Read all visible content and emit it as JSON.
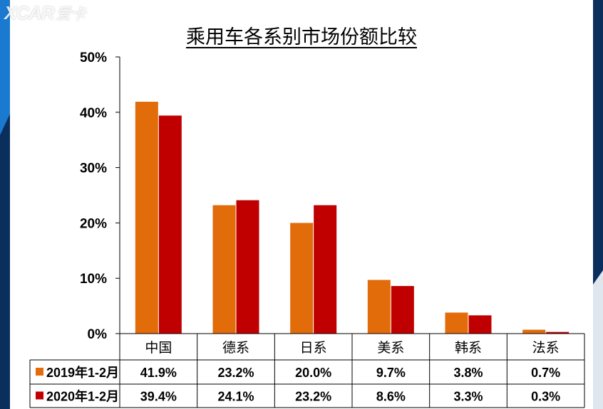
{
  "watermark": {
    "brand": "XCAR",
    "name": "爱卡"
  },
  "chart_data": {
    "type": "bar",
    "title": "乘用车各系别市场份额比较",
    "categories": [
      "中国",
      "德系",
      "日系",
      "美系",
      "韩系",
      "法系"
    ],
    "series": [
      {
        "name": "2019年1-2月",
        "color": "#E36C0A",
        "values": [
          41.9,
          23.2,
          20.0,
          9.7,
          3.8,
          0.7
        ],
        "labels": [
          "41.9%",
          "23.2%",
          "20.0%",
          "9.7%",
          "3.8%",
          "0.7%"
        ]
      },
      {
        "name": "2020年1-2月",
        "color": "#C00000",
        "values": [
          39.4,
          24.1,
          23.2,
          8.6,
          3.3,
          0.3
        ],
        "labels": [
          "39.4%",
          "24.1%",
          "23.2%",
          "8.6%",
          "3.3%",
          "0.3%"
        ]
      }
    ],
    "yticks": [
      "0%",
      "10%",
      "20%",
      "30%",
      "40%",
      "50%"
    ],
    "ylim": [
      0,
      50
    ],
    "xlabel": "",
    "ylabel": "",
    "grid": false,
    "legend": "data-table"
  },
  "colors": {
    "background_dark": "#0b2f5c",
    "background_blue": "#0d5aa7",
    "accent_white": "#ffffff"
  }
}
